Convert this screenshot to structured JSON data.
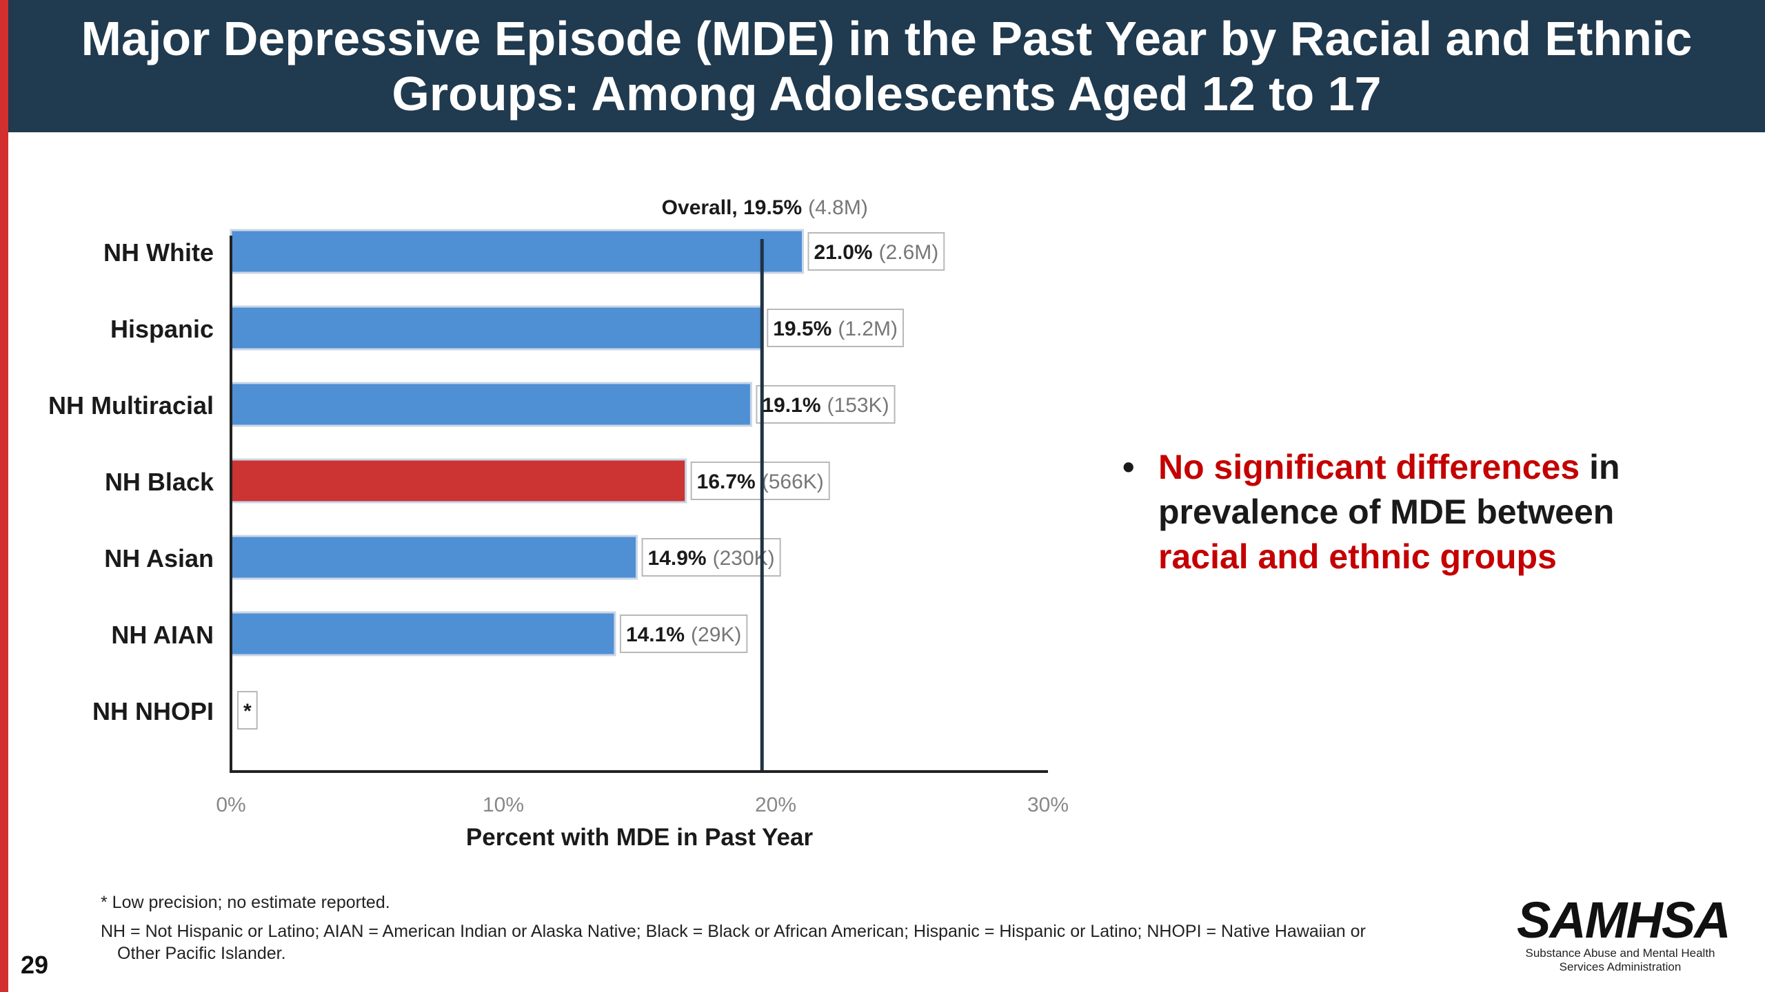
{
  "header": {
    "title": "Major Depressive Episode (MDE) in the Past Year by Racial and Ethnic Groups: Among Adolescents Aged 12 to 17"
  },
  "colors": {
    "header_bg": "#203a4f",
    "bar_default": "#4f8fd4",
    "bar_highlight": "#cc3333",
    "accent_text": "#c40000",
    "left_stripe": "#d32f2f"
  },
  "chart_data": {
    "type": "bar",
    "orientation": "horizontal",
    "categories": [
      "NH White",
      "Hispanic",
      "NH Multiracial",
      "NH Black",
      "NH Asian",
      "NH AIAN",
      "NH NHOPI"
    ],
    "values": [
      21.0,
      19.5,
      19.1,
      16.7,
      14.9,
      14.1,
      null
    ],
    "data_labels": [
      {
        "pct": "21.0%",
        "count": "(2.6M)"
      },
      {
        "pct": "19.5%",
        "count": "(1.2M)"
      },
      {
        "pct": "19.1%",
        "count": "(153K)"
      },
      {
        "pct": "16.7%",
        "count": "(566K)"
      },
      {
        "pct": "14.9%",
        "count": "(230K)"
      },
      {
        "pct": "14.1%",
        "count": "(29K)"
      },
      {
        "pct": "*",
        "count": ""
      }
    ],
    "highlight_category": "NH Black",
    "reference_line": {
      "value": 19.5,
      "label": "Overall, 19.5%",
      "count": "(4.8M)"
    },
    "xlim": [
      0,
      30
    ],
    "xticks": [
      0,
      10,
      20,
      30
    ],
    "xtick_labels": [
      "0%",
      "10%",
      "20%",
      "30%"
    ],
    "xlabel": "Percent with MDE in Past Year",
    "ylabel": ""
  },
  "bullet": {
    "part1": "No significant differences",
    "part2": " in prevalence of MDE between ",
    "part3": "racial and ethnic groups"
  },
  "footnotes": {
    "line1": "* Low precision; no estimate reported.",
    "line2a": "NH = Not Hispanic or Latino; AIAN = American Indian or Alaska Native; Black = Black or African American; Hispanic = Hispanic or Latino; NHOPI = Native Hawaiian or",
    "line2b": "Other Pacific Islander."
  },
  "page_number": "29",
  "logo": {
    "wordmark": "SAMHSA",
    "subtitle_line1": "Substance Abuse and Mental Health",
    "subtitle_line2": "Services Administration"
  }
}
